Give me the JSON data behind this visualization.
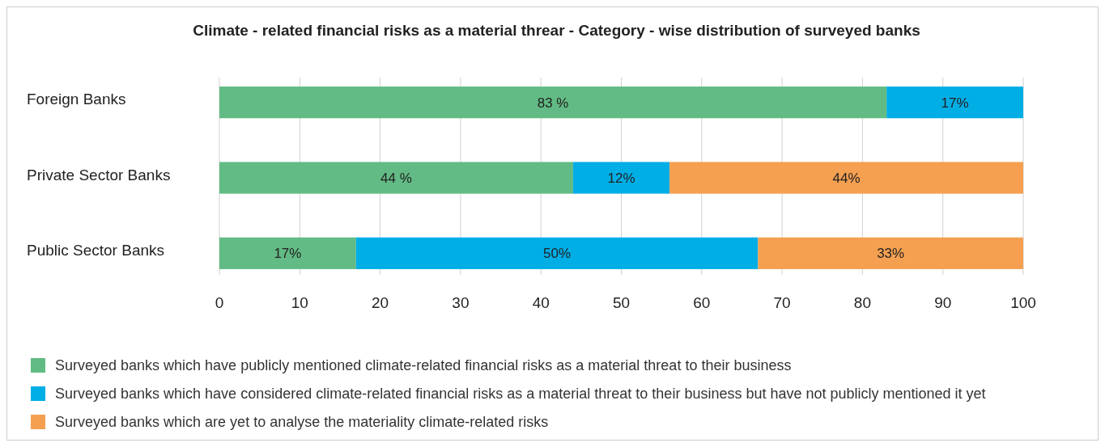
{
  "chart_data": {
    "type": "bar",
    "orientation": "horizontal",
    "stacked": true,
    "title": "Climate - related financial risks as a material threar - Category - wise distribution of surveyed banks",
    "categories": [
      "Foreign Banks",
      "Private Sector Banks",
      "Public Sector Banks"
    ],
    "series": [
      {
        "name": "Surveyed banks which have publicly mentioned climate-related financial risks as a material threat to their business",
        "color": "#62bb84",
        "values": [
          83,
          44,
          17
        ],
        "value_labels": [
          "83 %",
          "44 %",
          "17%"
        ]
      },
      {
        "name": "Surveyed banks which have considered climate-related financial risks as a material threat to their business but have not publicly mentioned it yet",
        "color": "#00aee6",
        "values": [
          17,
          12,
          50
        ],
        "value_labels": [
          "17%",
          "12%",
          "50%"
        ]
      },
      {
        "name": "Surveyed banks which are yet to analyse the materiality climate-related risks",
        "color": "#f5a051",
        "values": [
          null,
          44,
          33
        ],
        "value_labels": [
          null,
          "44%",
          "33%"
        ]
      }
    ],
    "xlim": [
      0,
      100
    ],
    "xticks": [
      0,
      10,
      20,
      30,
      40,
      50,
      60,
      70,
      80,
      90,
      100
    ],
    "grid": "x",
    "legend": "bottom"
  }
}
